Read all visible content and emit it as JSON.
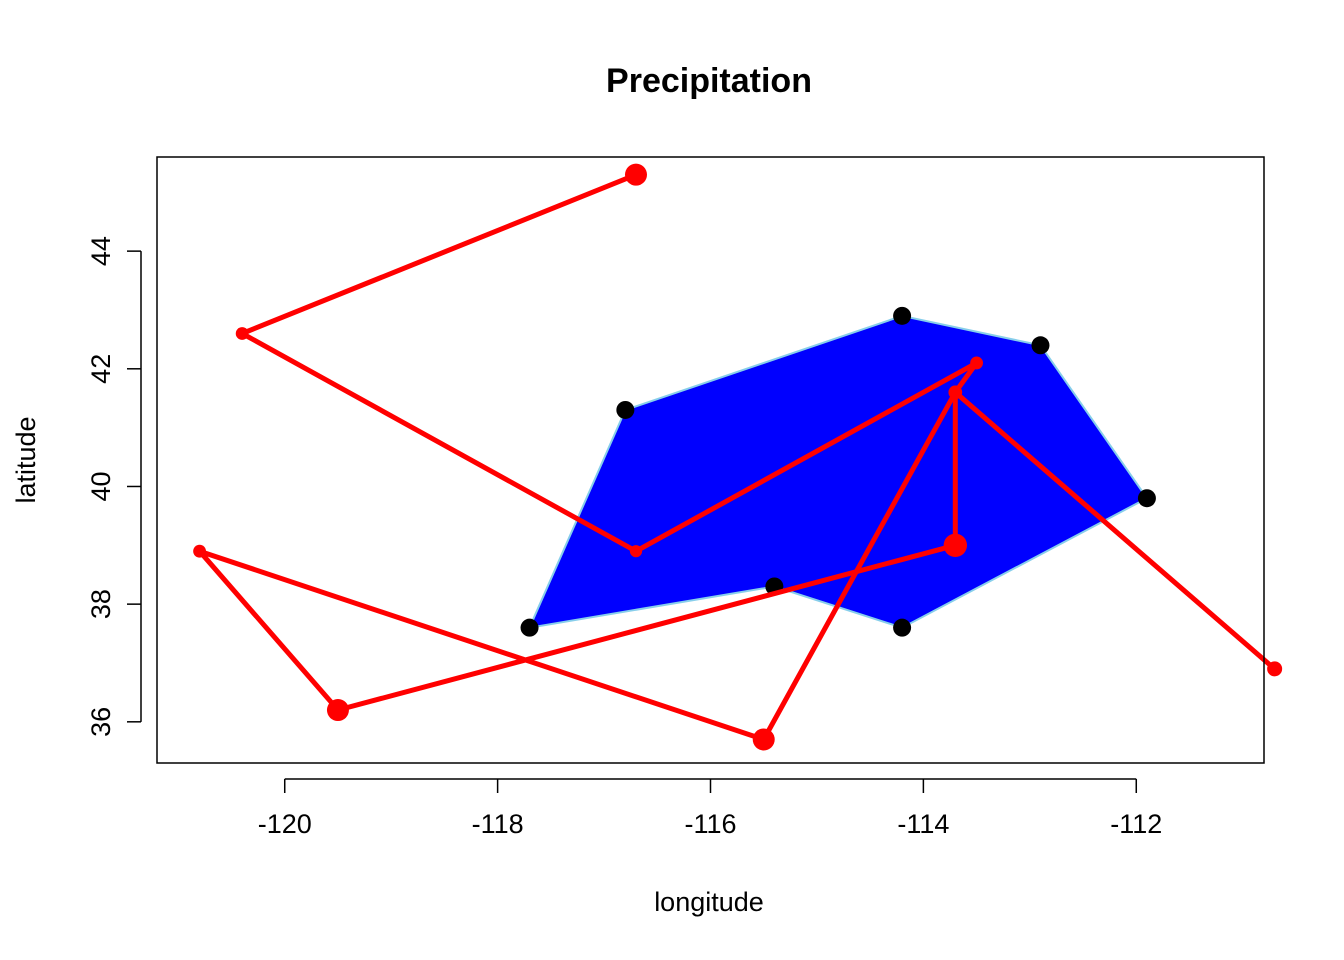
{
  "chart_data": {
    "type": "scatter",
    "title": "Precipitation",
    "xlabel": "longitude",
    "ylabel": "latitude",
    "xlim": [
      -121.2,
      -110.8
    ],
    "ylim": [
      35.3,
      45.6
    ],
    "x_ticks": [
      -120,
      -118,
      -116,
      -114,
      -112
    ],
    "y_ticks": [
      36,
      38,
      40,
      42,
      44
    ],
    "grid": false,
    "legend": "none",
    "colors": {
      "hull_fill": "#0000ff",
      "hull_edge": "#87ceeb",
      "station": "#000000",
      "path": "#ff0000"
    },
    "hull_polygon": [
      {
        "x": -117.7,
        "y": 37.6
      },
      {
        "x": -116.8,
        "y": 41.3
      },
      {
        "x": -114.2,
        "y": 42.9
      },
      {
        "x": -112.9,
        "y": 42.4
      },
      {
        "x": -111.9,
        "y": 39.8
      },
      {
        "x": -114.2,
        "y": 37.6
      },
      {
        "x": -115.4,
        "y": 38.3
      }
    ],
    "stations": [
      {
        "x": -117.7,
        "y": 37.6
      },
      {
        "x": -116.8,
        "y": 41.3
      },
      {
        "x": -114.2,
        "y": 42.9
      },
      {
        "x": -112.9,
        "y": 42.4
      },
      {
        "x": -111.9,
        "y": 39.8
      },
      {
        "x": -114.2,
        "y": 37.6
      },
      {
        "x": -115.4,
        "y": 38.3
      }
    ],
    "path": [
      {
        "x": -116.7,
        "y": 45.3,
        "size": 1.0
      },
      {
        "x": -120.4,
        "y": 42.6,
        "size": 0.35
      },
      {
        "x": -116.7,
        "y": 38.9,
        "size": 0.3
      },
      {
        "x": -113.5,
        "y": 42.1,
        "size": 0.35
      },
      {
        "x": -113.7,
        "y": 41.6,
        "size": 0.4
      },
      {
        "x": -113.7,
        "y": 39.0,
        "size": 1.1
      },
      {
        "x": -119.5,
        "y": 36.2,
        "size": 1.0
      },
      {
        "x": -120.8,
        "y": 38.9,
        "size": 0.35
      },
      {
        "x": -115.5,
        "y": 35.7,
        "size": 1.0
      },
      {
        "x": -113.7,
        "y": 41.6,
        "size": 0.4
      },
      {
        "x": -110.7,
        "y": 36.9,
        "size": 0.5
      }
    ]
  }
}
